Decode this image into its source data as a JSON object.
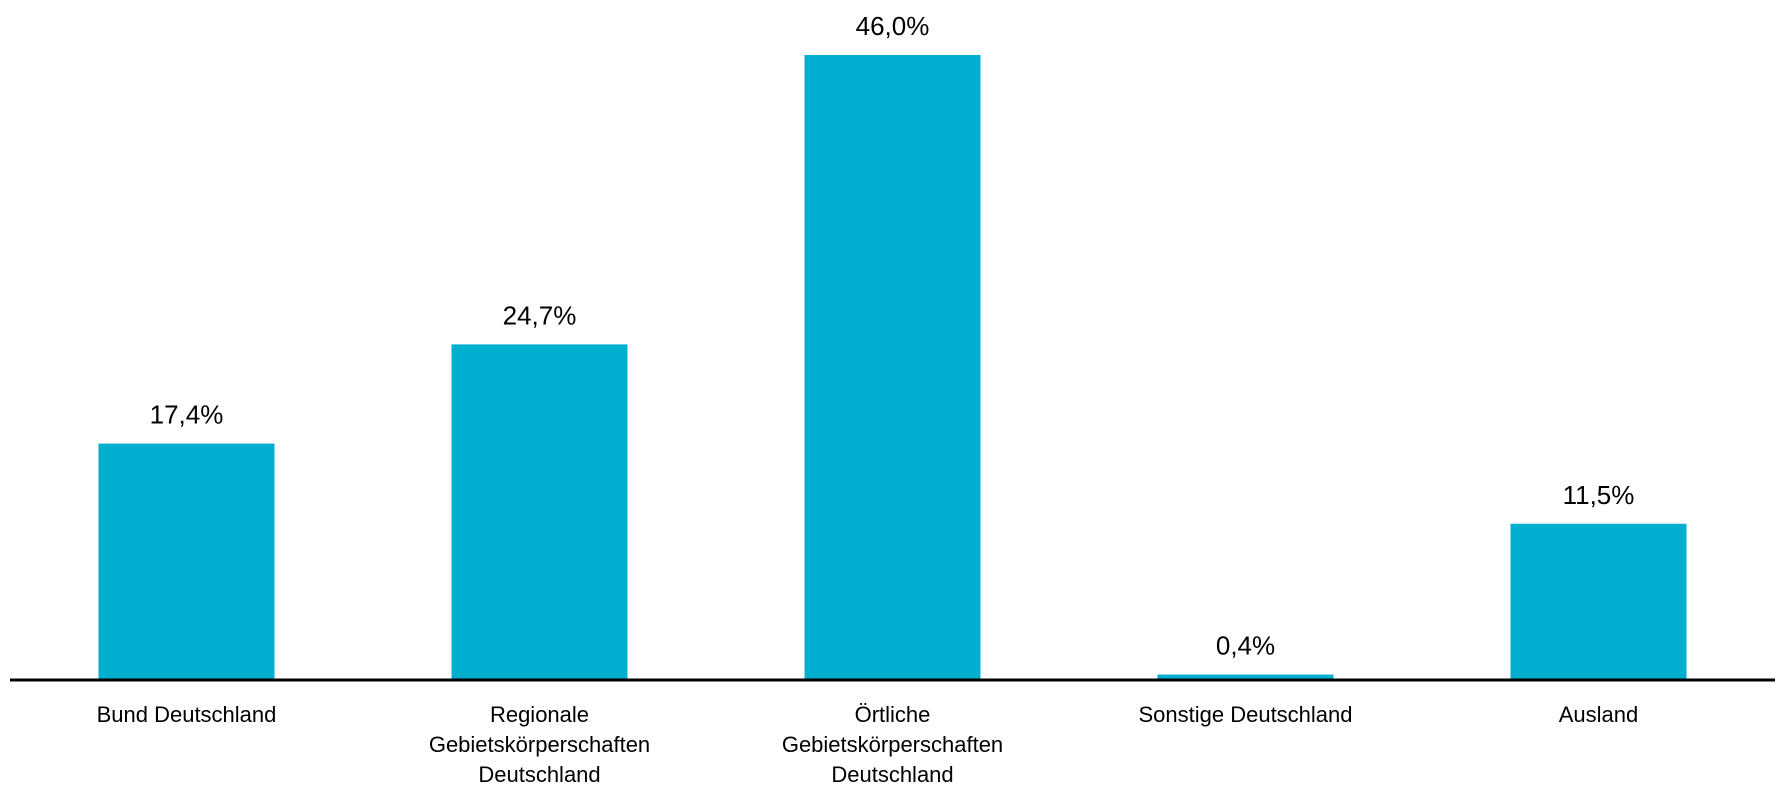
{
  "chart_data": {
    "type": "bar",
    "title": "",
    "xlabel": "",
    "ylabel": "",
    "ylim": [
      0,
      46
    ],
    "grid": false,
    "legend": "none",
    "categories": [
      [
        "Bund Deutschland"
      ],
      [
        "Regionale",
        "Gebietskörperschaften",
        "Deutschland"
      ],
      [
        "Örtliche",
        "Gebietskörperschaften",
        "Deutschland"
      ],
      [
        "Sonstige Deutschland"
      ],
      [
        "Ausland"
      ]
    ],
    "values": [
      17.4,
      24.7,
      46.0,
      0.4,
      11.5
    ],
    "value_labels": [
      "17,4%",
      "24,7%",
      "46,0%",
      "0,4%",
      "11,5%"
    ],
    "colors": {
      "bar": "#00AECF",
      "axis": "#000000",
      "text": "#000000"
    }
  }
}
